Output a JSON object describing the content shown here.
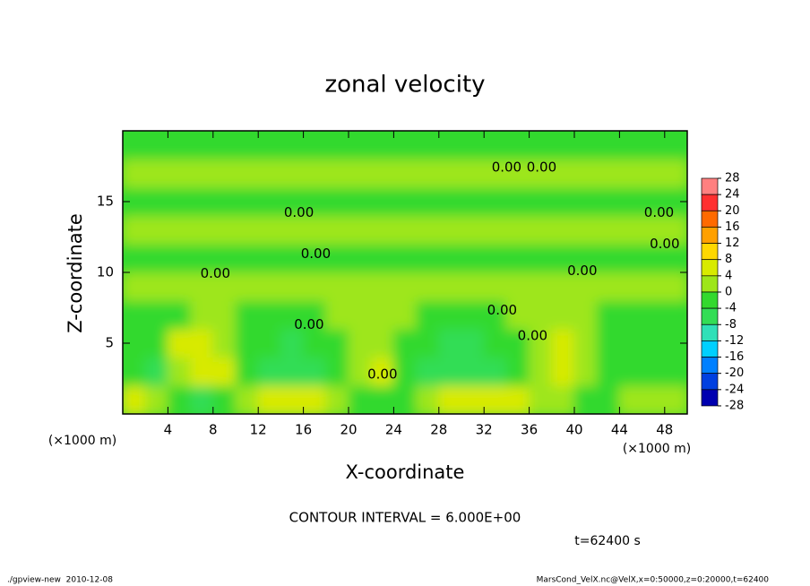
{
  "chart_data": {
    "type": "contour",
    "title": "zonal velocity",
    "xlabel": "X-coordinate",
    "ylabel": "Z-coordinate",
    "x_unit": "(×1000 m)",
    "xlim": [
      0,
      50
    ],
    "xticks": [
      4,
      8,
      12,
      16,
      20,
      24,
      28,
      32,
      36,
      40,
      44,
      48
    ],
    "ylim": [
      0,
      20
    ],
    "yticks": [
      5,
      10,
      15
    ],
    "x": [
      1,
      3,
      5,
      7,
      9,
      11,
      13,
      15,
      17,
      19,
      21,
      23,
      25,
      27,
      29,
      31,
      33,
      35,
      37,
      39,
      41,
      43,
      45,
      47,
      49
    ],
    "z": [
      1,
      3,
      5,
      7,
      9,
      11,
      13,
      15,
      17,
      19
    ],
    "values": [
      [
        5,
        3,
        -2,
        -5,
        -3,
        2,
        5,
        6,
        5,
        2,
        -2,
        -3,
        -2,
        1,
        4,
        6,
        6,
        5,
        3,
        1,
        -1,
        -2,
        1,
        3,
        2
      ],
      [
        -3,
        -5,
        2,
        5,
        4,
        -2,
        -6,
        -7,
        -6,
        -2,
        3,
        4,
        -3,
        -5,
        -6,
        -7,
        -5,
        -3,
        2,
        4,
        2,
        -2,
        -3,
        -1,
        -2
      ],
      [
        -2,
        -3,
        4,
        6,
        3,
        -1,
        -4,
        -5,
        -3,
        -1,
        2,
        3,
        -1,
        -3,
        -5,
        -6,
        -3,
        -1,
        3,
        5,
        2,
        -1,
        -2,
        -2,
        -1
      ],
      [
        -1,
        -2,
        -1,
        1,
        0,
        -1,
        -2,
        -2,
        -1,
        0,
        1,
        1,
        0,
        -1,
        -2,
        -2,
        -1,
        0,
        1,
        1,
        0,
        -1,
        -1,
        -1,
        -1
      ],
      [
        1,
        1,
        2,
        1,
        1,
        2,
        1,
        0,
        1,
        2,
        2,
        1,
        1,
        2,
        1,
        1,
        2,
        2,
        1,
        1,
        2,
        1,
        1,
        2,
        1
      ],
      [
        -1,
        -1,
        -2,
        -1,
        -1,
        -1,
        -2,
        -1,
        -1,
        -1,
        -2,
        -1,
        -1,
        -1,
        -1,
        -2,
        -1,
        -1,
        -1,
        -1,
        -2,
        -1,
        -1,
        -1,
        -1
      ],
      [
        1,
        2,
        1,
        1,
        2,
        1,
        1,
        2,
        1,
        1,
        1,
        2,
        1,
        1,
        2,
        1,
        1,
        1,
        2,
        1,
        1,
        2,
        1,
        1,
        2
      ],
      [
        -1,
        -1,
        -1,
        -2,
        -1,
        -1,
        -1,
        -1,
        -2,
        -1,
        -1,
        -1,
        -1,
        -2,
        -1,
        -1,
        -1,
        -1,
        -1,
        -2,
        -1,
        -1,
        -1,
        -1,
        -1
      ],
      [
        1,
        1,
        2,
        1,
        1,
        1,
        2,
        1,
        1,
        1,
        1,
        2,
        1,
        1,
        1,
        2,
        1,
        1,
        1,
        1,
        2,
        1,
        1,
        1,
        1
      ],
      [
        -1,
        -1,
        -1,
        -1,
        -1,
        -2,
        -1,
        -1,
        -1,
        -1,
        -1,
        -1,
        -2,
        -1,
        -1,
        -1,
        -1,
        -1,
        -1,
        -1,
        -1,
        -2,
        -1,
        -1,
        -1
      ]
    ],
    "colorbar": {
      "levels": [
        28,
        24,
        20,
        16,
        12,
        8,
        4,
        0,
        -4,
        -8,
        -12,
        -16,
        -20,
        -24,
        -28
      ],
      "colors": [
        "#ff8080",
        "#ff3030",
        "#ff6a00",
        "#ffa000",
        "#ffd800",
        "#d8ea00",
        "#9ee61a",
        "#33d92e",
        "#33dd55",
        "#30e0b8",
        "#00d0ff",
        "#0080ff",
        "#0040e0",
        "#0000b0"
      ]
    },
    "contour_labels": [
      {
        "x": 15.6,
        "z": 14.2,
        "label": "0.00"
      },
      {
        "x": 34.0,
        "z": 17.4,
        "label": "0.00"
      },
      {
        "x": 37.1,
        "z": 17.4,
        "label": "0.00"
      },
      {
        "x": 47.5,
        "z": 14.2,
        "label": "0.00"
      },
      {
        "x": 48.0,
        "z": 12.0,
        "label": "0.00"
      },
      {
        "x": 17.1,
        "z": 11.3,
        "label": "0.00"
      },
      {
        "x": 8.2,
        "z": 9.9,
        "label": "0.00"
      },
      {
        "x": 40.7,
        "z": 10.1,
        "label": "0.00"
      },
      {
        "x": 33.6,
        "z": 7.3,
        "label": "0.00"
      },
      {
        "x": 16.5,
        "z": 6.3,
        "label": "0.00"
      },
      {
        "x": 23.0,
        "z": 2.8,
        "label": "0.00"
      },
      {
        "x": 36.3,
        "z": 5.5,
        "label": "0.00"
      }
    ],
    "contour_interval_label": "CONTOUR INTERVAL = 6.000E+00",
    "time_label": "t=62400 s",
    "footer_left": "./gpview-new  2010-12-08",
    "footer_right": "MarsCond_VelX.nc@VelX,x=0:50000,z=0:20000,t=62400"
  }
}
